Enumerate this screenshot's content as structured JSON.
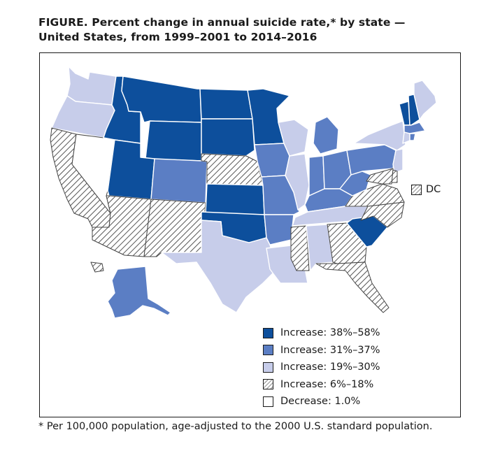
{
  "title": {
    "line1": "FIGURE. Percent change in annual suicide rate,* by state —",
    "line2": "United States, from 1999–2001 to 2014–2016"
  },
  "colors": {
    "increase_38_58": "#0d4f9c",
    "increase_31_37": "#5b7ec4",
    "increase_19_30": "#c7cdea",
    "increase_6_18": "hatched",
    "decrease": "#ffffff"
  },
  "legend": [
    {
      "key": "increase_38_58",
      "label": "Increase: 38%–58%"
    },
    {
      "key": "increase_31_37",
      "label": "Increase: 31%–37%"
    },
    {
      "key": "increase_19_30",
      "label": "Increase: 19%–30%"
    },
    {
      "key": "increase_6_18",
      "label": "Increase: 6%–18%"
    },
    {
      "key": "decrease",
      "label": "Decrease: 1.0%"
    }
  ],
  "dc": {
    "label": "DC",
    "category": "increase_6_18"
  },
  "states": {
    "WA": "increase_19_30",
    "OR": "increase_19_30",
    "CA": "increase_6_18",
    "NV": "decrease",
    "ID": "increase_38_58",
    "MT": "increase_38_58",
    "WY": "increase_38_58",
    "UT": "increase_38_58",
    "AZ": "increase_6_18",
    "CO": "increase_31_37",
    "NM": "increase_6_18",
    "ND": "increase_38_58",
    "SD": "increase_38_58",
    "NE": "increase_6_18",
    "KS": "increase_38_58",
    "OK": "increase_38_58",
    "TX": "increase_19_30",
    "MN": "increase_38_58",
    "IA": "increase_31_37",
    "MO": "increase_31_37",
    "AR": "increase_31_37",
    "LA": "increase_19_30",
    "WI": "increase_19_30",
    "IL": "increase_19_30",
    "MI": "increase_31_37",
    "IN": "increase_31_37",
    "OH": "increase_31_37",
    "KY": "increase_31_37",
    "TN": "increase_19_30",
    "MS": "increase_6_18",
    "AL": "increase_19_30",
    "GA": "increase_6_18",
    "FL": "increase_6_18",
    "SC": "increase_38_58",
    "NC": "increase_6_18",
    "VA": "increase_6_18",
    "WV": "increase_31_37",
    "PA": "increase_31_37",
    "NY": "increase_19_30",
    "VT": "increase_38_58",
    "NH": "increase_38_58",
    "ME": "increase_19_30",
    "MA": "increase_31_37",
    "CT": "increase_19_30",
    "RI": "increase_31_37",
    "NJ": "increase_19_30",
    "DE": "increase_6_18",
    "MD": "increase_6_18",
    "AK": "increase_31_37",
    "HI": "increase_6_18"
  },
  "footnote": "* Per 100,000 population, age-adjusted to the 2000 U.S. standard population."
}
